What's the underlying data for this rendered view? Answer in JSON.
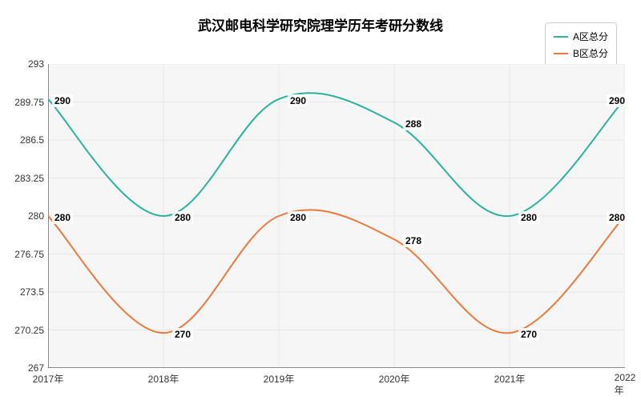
{
  "chart": {
    "type": "line",
    "title": "武汉邮电科学研究院理学历年考研分数线",
    "title_fontsize": 17,
    "background_color": "#ffffff",
    "plot_bg_color": "#f6f6f6",
    "grid_color": "#e8e8e8",
    "axis_color": "#666666",
    "x": {
      "categories": [
        "2017年",
        "2018年",
        "2019年",
        "2020年",
        "2021年",
        "2022年"
      ]
    },
    "y": {
      "min": 267,
      "max": 293,
      "ticks": [
        267,
        270.25,
        273.5,
        276.75,
        280,
        283.25,
        286.5,
        289.75,
        293
      ]
    },
    "legend": {
      "items": [
        {
          "label": "A区总分",
          "color": "#2bb39a"
        },
        {
          "label": "B区总分",
          "color": "#e87a3c"
        }
      ]
    },
    "series": [
      {
        "name": "A区总分",
        "color": "#2bb39a",
        "line_width": 2,
        "smooth": true,
        "values": [
          290,
          280,
          290,
          288,
          280,
          290
        ]
      },
      {
        "name": "B区总分",
        "color": "#e87a3c",
        "line_width": 2,
        "smooth": true,
        "values": [
          280,
          270,
          280,
          278,
          270,
          280
        ]
      }
    ]
  }
}
